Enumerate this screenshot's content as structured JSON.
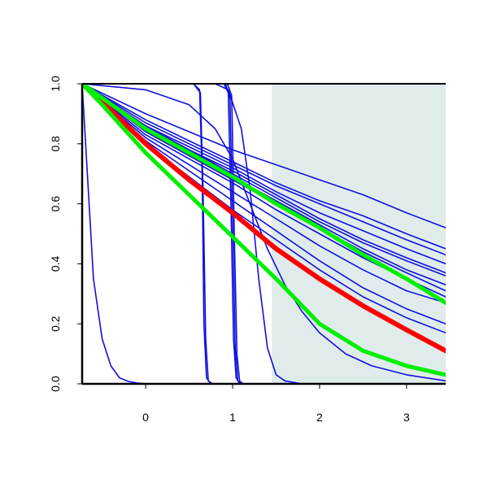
{
  "chart_data": {
    "type": "line",
    "title": "",
    "xlabel": "",
    "ylabel": "",
    "xlim": [
      -0.73,
      3.45
    ],
    "ylim": [
      0.0,
      1.0
    ],
    "x_ticks": [
      0,
      1,
      2,
      3
    ],
    "y_ticks": [
      0.0,
      0.2,
      0.4,
      0.6,
      0.8,
      1.0
    ],
    "x_tick_labels": [
      "0",
      "1",
      "2",
      "3"
    ],
    "y_tick_labels": [
      "0.0",
      "0.2",
      "0.4",
      "0.6",
      "0.8",
      "1.0"
    ],
    "grid": false,
    "legend": "none",
    "shaded_region": {
      "x_from": 1.45,
      "x_to": 3.45,
      "color": "#e0ecec"
    },
    "colors": {
      "blue": "#1010dd",
      "red": "#ff0000",
      "green": "#00ee00"
    },
    "series": [
      {
        "color": "blue",
        "x": [
          -0.73,
          -0.6,
          -0.5,
          -0.4,
          -0.3,
          -0.2,
          -0.1,
          0.0
        ],
        "y": [
          1.0,
          0.35,
          0.15,
          0.06,
          0.02,
          0.008,
          0.003,
          0.0
        ]
      },
      {
        "color": "blue",
        "x": [
          -0.73,
          0.55,
          0.62,
          0.65,
          0.67,
          0.7,
          0.75
        ],
        "y": [
          1.0,
          1.0,
          0.98,
          0.7,
          0.2,
          0.02,
          0.0
        ]
      },
      {
        "color": "blue",
        "x": [
          -0.73,
          0.55,
          0.63,
          0.66,
          0.69,
          0.72,
          0.77
        ],
        "y": [
          1.0,
          1.0,
          0.97,
          0.65,
          0.15,
          0.01,
          0.0
        ]
      },
      {
        "color": "blue",
        "x": [
          -0.73,
          0.9,
          0.95,
          0.98,
          1.01,
          1.04,
          1.08
        ],
        "y": [
          1.0,
          1.0,
          0.97,
          0.6,
          0.15,
          0.02,
          0.0
        ]
      },
      {
        "color": "blue",
        "x": [
          -0.73,
          0.92,
          0.97,
          1.0,
          1.03,
          1.06,
          1.1
        ],
        "y": [
          1.0,
          1.0,
          0.95,
          0.55,
          0.12,
          0.01,
          0.0
        ]
      },
      {
        "color": "blue",
        "x": [
          -0.73,
          0.94,
          0.99,
          1.02,
          1.05,
          1.08,
          1.12
        ],
        "y": [
          1.0,
          1.0,
          0.96,
          0.5,
          0.1,
          0.01,
          0.0
        ]
      },
      {
        "color": "blue",
        "x": [
          -0.73,
          0.8,
          0.95,
          1.1,
          1.2,
          1.3,
          1.4,
          1.5,
          1.6,
          1.8
        ],
        "y": [
          1.0,
          1.0,
          0.98,
          0.85,
          0.65,
          0.35,
          0.12,
          0.03,
          0.01,
          0.0
        ]
      },
      {
        "color": "blue",
        "x": [
          -0.73,
          0.0,
          0.5,
          0.8,
          1.0,
          1.2,
          1.4,
          1.6,
          1.8,
          2.0,
          2.3,
          2.6,
          3.0,
          3.45
        ],
        "y": [
          1.0,
          0.98,
          0.93,
          0.85,
          0.75,
          0.6,
          0.45,
          0.33,
          0.24,
          0.17,
          0.1,
          0.06,
          0.03,
          0.01
        ]
      },
      {
        "color": "blue",
        "x": [
          -0.73,
          0.0,
          0.5,
          1.0,
          1.5,
          2.0,
          2.5,
          3.0,
          3.45
        ],
        "y": [
          1.0,
          0.87,
          0.8,
          0.73,
          0.66,
          0.6,
          0.54,
          0.48,
          0.43
        ]
      },
      {
        "color": "blue",
        "x": [
          -0.73,
          0.0,
          0.5,
          1.0,
          1.5,
          2.0,
          2.5,
          3.0,
          3.45
        ],
        "y": [
          1.0,
          0.88,
          0.81,
          0.74,
          0.67,
          0.61,
          0.56,
          0.5,
          0.45
        ]
      },
      {
        "color": "blue",
        "x": [
          -0.73,
          0.0,
          0.5,
          1.0,
          1.5,
          2.0,
          2.5,
          3.0,
          3.45
        ],
        "y": [
          1.0,
          0.9,
          0.84,
          0.78,
          0.73,
          0.68,
          0.63,
          0.57,
          0.52
        ]
      },
      {
        "color": "blue",
        "x": [
          -0.73,
          0.0,
          0.5,
          1.0,
          1.5,
          2.0,
          2.5,
          3.0,
          3.45
        ],
        "y": [
          1.0,
          0.86,
          0.79,
          0.72,
          0.64,
          0.57,
          0.51,
          0.45,
          0.4
        ]
      },
      {
        "color": "blue",
        "x": [
          -0.73,
          0.0,
          0.5,
          1.0,
          1.5,
          2.0,
          2.5,
          3.0,
          3.45
        ],
        "y": [
          1.0,
          0.85,
          0.78,
          0.7,
          0.62,
          0.54,
          0.47,
          0.41,
          0.36
        ]
      },
      {
        "color": "blue",
        "x": [
          -0.73,
          0.0,
          0.5,
          1.0,
          1.5,
          2.0,
          2.5,
          3.0,
          3.45
        ],
        "y": [
          1.0,
          0.84,
          0.76,
          0.68,
          0.6,
          0.52,
          0.44,
          0.37,
          0.31
        ]
      },
      {
        "color": "blue",
        "x": [
          -0.73,
          0.0,
          0.5,
          1.0,
          1.5,
          2.0,
          2.5,
          3.0,
          3.45
        ],
        "y": [
          1.0,
          0.83,
          0.75,
          0.67,
          0.58,
          0.5,
          0.42,
          0.35,
          0.29
        ]
      },
      {
        "color": "blue",
        "x": [
          -0.73,
          0.0,
          0.5,
          1.0,
          1.5,
          2.0,
          2.5,
          3.0,
          3.45
        ],
        "y": [
          1.0,
          0.85,
          0.77,
          0.69,
          0.61,
          0.53,
          0.45,
          0.38,
          0.33
        ]
      },
      {
        "color": "blue",
        "x": [
          -0.73,
          0.0,
          0.5,
          1.0,
          1.5,
          2.0,
          2.5,
          3.0,
          3.45
        ],
        "y": [
          1.0,
          0.82,
          0.73,
          0.64,
          0.55,
          0.46,
          0.38,
          0.31,
          0.27
        ]
      },
      {
        "color": "blue",
        "x": [
          -0.73,
          0.0,
          0.5,
          1.0,
          1.5,
          2.0,
          2.5,
          3.0,
          3.45
        ],
        "y": [
          1.0,
          0.81,
          0.71,
          0.61,
          0.51,
          0.41,
          0.32,
          0.25,
          0.2
        ]
      },
      {
        "color": "blue",
        "x": [
          -0.73,
          0.0,
          0.5,
          1.0,
          1.5,
          2.0,
          2.5,
          3.0,
          3.45
        ],
        "y": [
          1.0,
          0.8,
          0.69,
          0.58,
          0.48,
          0.38,
          0.29,
          0.22,
          0.17
        ]
      },
      {
        "color": "blue",
        "x": [
          -0.73,
          0.0,
          0.5,
          1.0,
          1.5,
          2.0,
          2.5,
          3.0,
          3.45
        ],
        "y": [
          1.0,
          0.86,
          0.78,
          0.71,
          0.63,
          0.55,
          0.48,
          0.42,
          0.37
        ]
      },
      {
        "color": "red",
        "width": 6,
        "x": [
          -0.73,
          -0.5,
          0.0,
          0.5,
          1.0,
          1.5,
          2.0,
          2.5,
          3.0,
          3.45
        ],
        "y": [
          1.0,
          0.94,
          0.8,
          0.68,
          0.57,
          0.45,
          0.35,
          0.26,
          0.18,
          0.11
        ]
      },
      {
        "color": "green",
        "width": 5,
        "x": [
          -0.73,
          0.0,
          0.5,
          1.0,
          1.5,
          2.0,
          2.5,
          3.0,
          3.45
        ],
        "y": [
          1.0,
          0.85,
          0.77,
          0.69,
          0.6,
          0.52,
          0.43,
          0.35,
          0.27
        ]
      },
      {
        "color": "green",
        "width": 5,
        "x": [
          -0.73,
          -0.5,
          0.0,
          0.5,
          1.0,
          1.5,
          2.0,
          2.5,
          3.0,
          3.45
        ],
        "y": [
          1.0,
          0.93,
          0.77,
          0.63,
          0.49,
          0.35,
          0.2,
          0.11,
          0.06,
          0.03
        ]
      }
    ]
  }
}
